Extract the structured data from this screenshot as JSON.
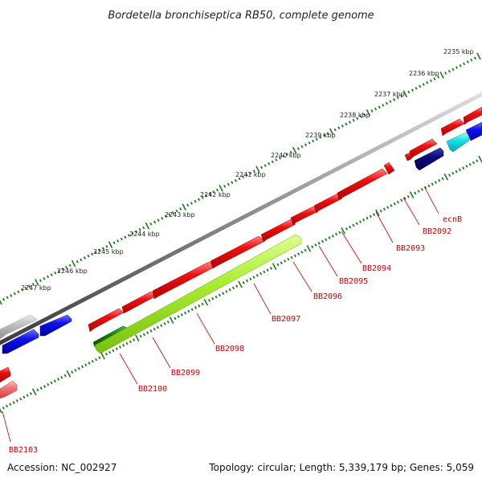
{
  "title": "Bordetella bronchiseptica RB50, complete genome",
  "accession": "Accession: NC_002927",
  "topology": "Topology: circular; Length: 5,339,179 bp; Genes: 5,059",
  "colors": {
    "backbone": "#8a8a8a",
    "tick": "#1e7a1e",
    "gene_label": "#cc0000",
    "red_gene": "#ee1111",
    "blue_gene": "#1010ee",
    "navy_gene": "#0a0a80",
    "cyan_gene": "#18e0e8",
    "lime_gene": "#aaee33",
    "dark_green_gene": "#157a15",
    "gray_gene": "#b8b8b8",
    "pink_gene": "#f07878"
  },
  "kbp_labels": [
    "2235 kbp",
    "2236 kbp",
    "2237 kbp",
    "2238 kbp",
    "2239 kbp",
    "2240 kbp",
    "2241 kbp",
    "2242 kbp",
    "2243 kbp",
    "2244 kbp",
    "2245 kbp",
    "2246 kbp",
    "2247 kbp"
  ],
  "gene_labels": [
    "ecnB",
    "BB2092",
    "BB2093",
    "BB2094",
    "BB2095",
    "BB2096",
    "BB2097",
    "BB2098",
    "BB2099",
    "BB2100",
    "BB2103"
  ]
}
